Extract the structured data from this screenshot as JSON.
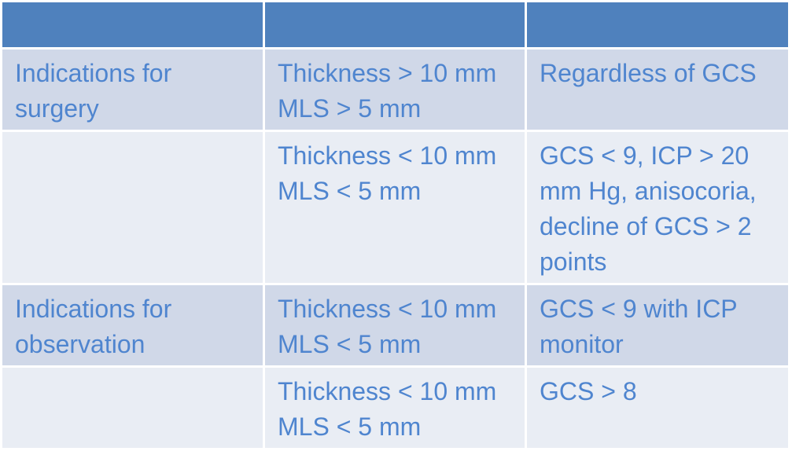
{
  "table": {
    "rows": [
      [
        "Indications for surgery",
        "Thickness > 10 mm\nMLS > 5 mm",
        "Regardless of GCS"
      ],
      [
        null,
        "Thickness < 10 mm\nMLS < 5 mm",
        "GCS < 9, ICP > 20 mm Hg, anisocoria, decline of GCS > 2 points"
      ],
      [
        "Indications for observation",
        "Thickness < 10 mm\nMLS < 5 mm",
        "GCS < 9 with ICP monitor"
      ],
      [
        null,
        "Thickness < 10 mm\nMLS < 5 mm",
        "GCS > 8"
      ]
    ]
  }
}
